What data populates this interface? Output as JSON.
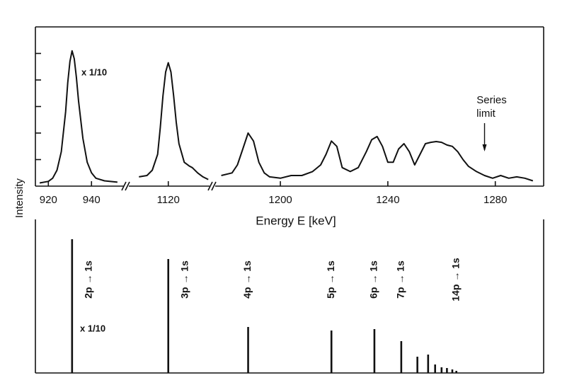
{
  "chart_data": [
    {
      "type": "line",
      "ylabel": "Intensity",
      "xlabel": "Energy E [keV]",
      "color": "#111111",
      "ylim": [
        0,
        6
      ],
      "yticks": [
        1,
        2,
        3,
        4,
        5
      ],
      "x_segments": [
        {
          "xlim": [
            914,
            955
          ],
          "xticks": [
            920,
            940
          ]
        },
        {
          "xlim": [
            1106,
            1136
          ],
          "xticks": [
            1120
          ]
        },
        {
          "xlim": [
            1176,
            1298
          ],
          "xticks": [
            1200,
            1240,
            1280
          ]
        }
      ],
      "x": [
        916,
        920,
        922,
        924,
        926,
        928,
        929,
        930,
        931,
        932,
        933,
        934,
        936,
        938,
        940,
        942,
        946,
        952,
        1000,
        1109,
        1112,
        1114,
        1116,
        1117,
        1118,
        1119,
        1120,
        1121,
        1122,
        1123,
        1124,
        1126,
        1128,
        1129,
        1131,
        1133,
        1135,
        1150,
        1178,
        1182,
        1184,
        1186,
        1188,
        1190,
        1192,
        1194,
        1196,
        1200,
        1204,
        1208,
        1212,
        1215,
        1217,
        1219,
        1221,
        1223,
        1226,
        1229,
        1232,
        1234,
        1236,
        1238,
        1240,
        1242,
        1244,
        1246,
        1248,
        1250,
        1252,
        1254,
        1256,
        1258,
        1260,
        1262,
        1264,
        1266,
        1268,
        1270,
        1273,
        1276,
        1279,
        1282,
        1285,
        1288,
        1291,
        1294
      ],
      "values": [
        0.12,
        0.18,
        0.3,
        0.6,
        1.3,
        2.8,
        3.9,
        4.7,
        5.1,
        4.8,
        4.1,
        3.2,
        1.8,
        0.9,
        0.5,
        0.3,
        0.2,
        0.15,
        null,
        0.35,
        0.4,
        0.6,
        1.2,
        2.2,
        3.4,
        4.3,
        4.65,
        4.3,
        3.4,
        2.4,
        1.6,
        0.9,
        0.75,
        0.7,
        0.5,
        0.35,
        0.25,
        null,
        0.4,
        0.5,
        0.8,
        1.4,
        2.0,
        1.7,
        0.9,
        0.5,
        0.35,
        0.3,
        0.4,
        0.4,
        0.55,
        0.8,
        1.2,
        1.7,
        1.5,
        0.7,
        0.55,
        0.7,
        1.3,
        1.75,
        1.87,
        1.5,
        0.9,
        0.9,
        1.4,
        1.6,
        1.3,
        0.8,
        1.2,
        1.6,
        1.65,
        1.68,
        1.65,
        1.55,
        1.5,
        1.3,
        1.0,
        0.75,
        0.55,
        0.4,
        0.3,
        0.4,
        0.3,
        0.35,
        0.3,
        0.2
      ],
      "annotations": [
        {
          "text": "x 1/10"
        },
        {
          "text": "Series",
          "x": 1276
        },
        {
          "text": "limit"
        }
      ]
    },
    {
      "type": "stem",
      "color": "#111111",
      "ylim": [
        0,
        217
      ],
      "x": [
        931,
        1120,
        1188,
        1219,
        1235,
        1245,
        1251,
        1255,
        1257.6,
        1260,
        1262,
        1264,
        1265.5
      ],
      "values": [
        189,
        161,
        65,
        60,
        62,
        45,
        23,
        26,
        12,
        8,
        7,
        5,
        3
      ],
      "labels": [
        "2p → 1s",
        "3p → 1s",
        "4p → 1s",
        "5p → 1s",
        "6p → 1s",
        "7p → 1s",
        null,
        null,
        null,
        null,
        null,
        null,
        "14p → 1s"
      ],
      "annotations": [
        {
          "text": "x 1/10"
        }
      ]
    }
  ]
}
